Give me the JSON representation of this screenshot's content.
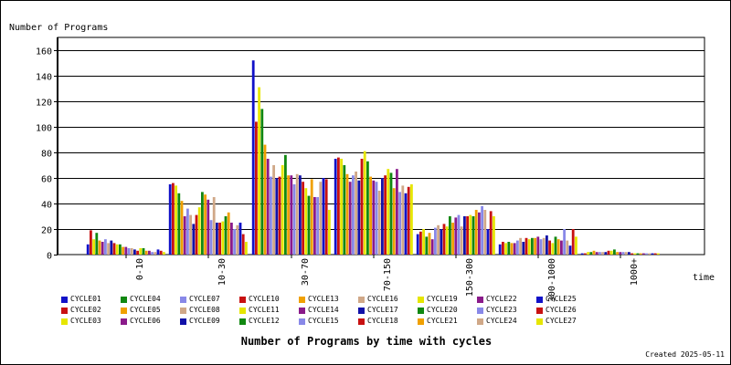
{
  "chart_data": {
    "type": "bar",
    "title": "Number of Programs by time with cycles",
    "ylabel": "Number of Programs",
    "xlabel": "time",
    "ylim": [
      0,
      170
    ],
    "yticks": [
      0,
      20,
      40,
      60,
      80,
      100,
      120,
      140,
      160
    ],
    "grid": true,
    "categories": [
      "0-10",
      "10-30",
      "30-70",
      "70-150",
      "150-300",
      "300-1000",
      "1000+"
    ],
    "series": [
      {
        "name": "CYCLE01",
        "color": "#1111c8",
        "values": [
          8,
          55,
          152,
          75,
          16,
          8,
          1
        ]
      },
      {
        "name": "CYCLE02",
        "color": "#c81111",
        "values": [
          19,
          56,
          104,
          76,
          18,
          10,
          1
        ]
      },
      {
        "name": "CYCLE03",
        "color": "#e6e600",
        "values": [
          12,
          54,
          131,
          75,
          20,
          9,
          2
        ]
      },
      {
        "name": "CYCLE04",
        "color": "#118811",
        "values": [
          17,
          48,
          114,
          70,
          14,
          10,
          2
        ]
      },
      {
        "name": "CYCLE05",
        "color": "#f0a000",
        "values": [
          11,
          42,
          86,
          63,
          17,
          9,
          3
        ]
      },
      {
        "name": "CYCLE06",
        "color": "#8a1a8a",
        "values": [
          10,
          30,
          75,
          57,
          12,
          9,
          2
        ]
      },
      {
        "name": "CYCLE07",
        "color": "#8888e8",
        "values": [
          12,
          36,
          61,
          62,
          21,
          11,
          2
        ]
      },
      {
        "name": "CYCLE08",
        "color": "#d0a888",
        "values": [
          9,
          31,
          70,
          65,
          23,
          13,
          2
        ]
      },
      {
        "name": "CYCLE09",
        "color": "#1111a8",
        "values": [
          11,
          24,
          60,
          58,
          20,
          10,
          2
        ]
      },
      {
        "name": "CYCLE10",
        "color": "#c81111",
        "values": [
          9,
          31,
          61,
          75,
          24,
          13,
          3
        ]
      },
      {
        "name": "CYCLE11",
        "color": "#e6e600",
        "values": [
          8,
          37,
          70,
          81,
          22,
          12,
          3
        ]
      },
      {
        "name": "CYCLE12",
        "color": "#118811",
        "values": [
          8,
          49,
          78,
          73,
          30,
          13,
          4
        ]
      },
      {
        "name": "CYCLE13",
        "color": "#f0a000",
        "values": [
          6,
          47,
          62,
          61,
          25,
          13,
          2
        ]
      },
      {
        "name": "CYCLE14",
        "color": "#8a1a8a",
        "values": [
          6,
          43,
          62,
          58,
          29,
          14,
          2
        ]
      },
      {
        "name": "CYCLE15",
        "color": "#8888e8",
        "values": [
          5,
          27,
          55,
          57,
          31,
          12,
          2
        ]
      },
      {
        "name": "CYCLE16",
        "color": "#d0a888",
        "values": [
          5,
          45,
          63,
          50,
          22,
          13,
          2
        ]
      },
      {
        "name": "CYCLE17",
        "color": "#1111a8",
        "values": [
          4,
          25,
          62,
          60,
          30,
          15,
          2
        ]
      },
      {
        "name": "CYCLE18",
        "color": "#c81111",
        "values": [
          3,
          25,
          57,
          62,
          30,
          11,
          1
        ]
      },
      {
        "name": "CYCLE19",
        "color": "#e6e600",
        "values": [
          5,
          26,
          52,
          67,
          31,
          9,
          1
        ]
      },
      {
        "name": "CYCLE20",
        "color": "#118811",
        "values": [
          5,
          30,
          46,
          64,
          30,
          14,
          1
        ]
      },
      {
        "name": "CYCLE21",
        "color": "#f0a000",
        "values": [
          3,
          33,
          59,
          52,
          35,
          12,
          1
        ]
      },
      {
        "name": "CYCLE22",
        "color": "#8a1a8a",
        "values": [
          3,
          25,
          45,
          67,
          33,
          11,
          1
        ]
      },
      {
        "name": "CYCLE23",
        "color": "#8888e8",
        "values": [
          2,
          20,
          45,
          49,
          38,
          20,
          1
        ]
      },
      {
        "name": "CYCLE24",
        "color": "#d0a888",
        "values": [
          2,
          23,
          57,
          54,
          35,
          11,
          1
        ]
      },
      {
        "name": "CYCLE25",
        "color": "#1111c8",
        "values": [
          4,
          25,
          60,
          48,
          20,
          7,
          1
        ]
      },
      {
        "name": "CYCLE26",
        "color": "#c81111",
        "values": [
          3,
          16,
          59,
          53,
          34,
          20,
          1
        ]
      },
      {
        "name": "CYCLE27",
        "color": "#e6e600",
        "values": [
          2,
          10,
          35,
          55,
          30,
          14,
          1
        ]
      }
    ],
    "legend_position": "bottom"
  },
  "created_text": "Created 2025-05-11"
}
